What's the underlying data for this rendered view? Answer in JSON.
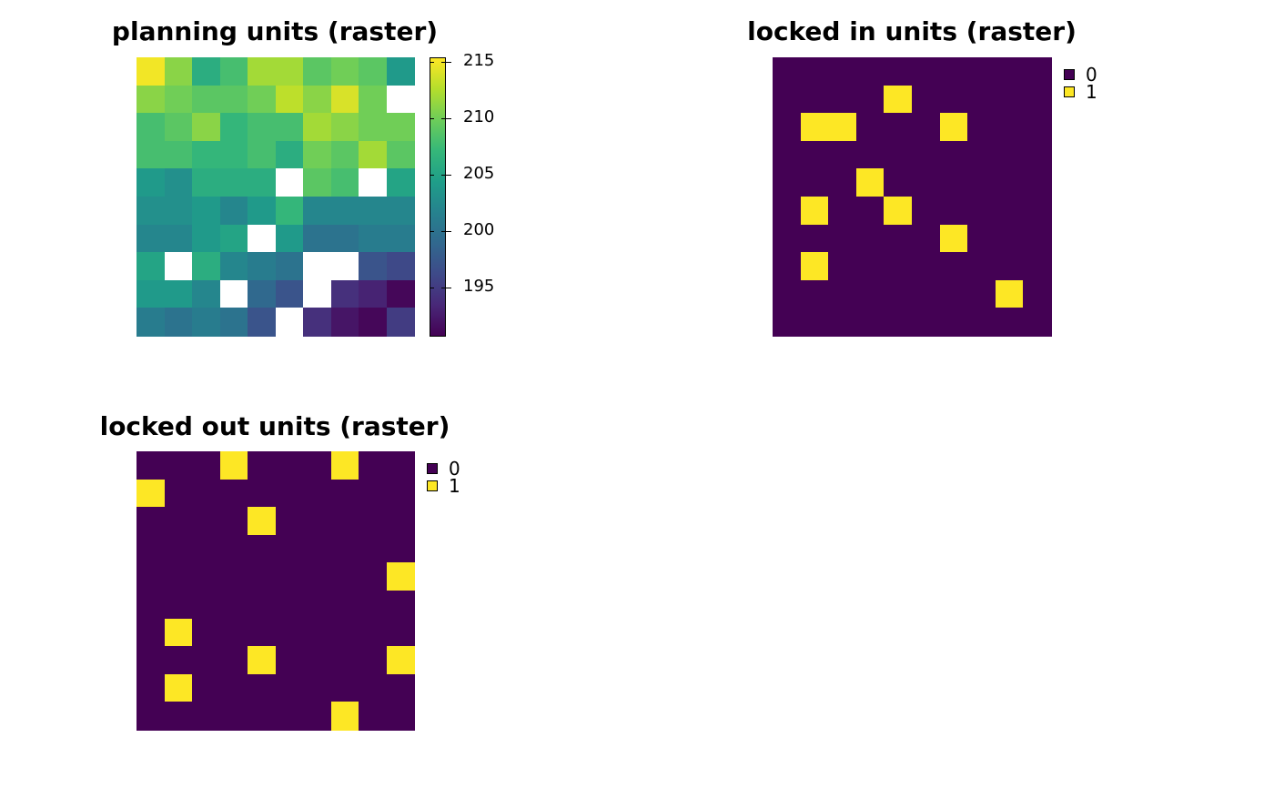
{
  "colors": {
    "viridis": [
      "#440154",
      "#482878",
      "#3E4A89",
      "#31688E",
      "#26828E",
      "#1F9E89",
      "#35B779",
      "#6DCD59",
      "#B4DE2C",
      "#FDE725"
    ],
    "na": "#ffffff",
    "locked_0": "#440154",
    "locked_1": "#FDE725"
  },
  "chart_data": [
    {
      "type": "heatmap",
      "title": "planning units (raster)",
      "rows": 10,
      "cols": 10,
      "value_range": [
        190.6,
        215.4
      ],
      "colorbar_ticks": [
        195,
        200,
        205,
        210,
        215
      ],
      "values": [
        [
          215,
          211,
          206,
          208,
          212,
          212,
          209,
          210,
          209,
          204
        ],
        [
          211,
          210,
          209,
          209,
          210,
          213,
          211,
          214,
          210,
          null
        ],
        [
          208,
          209,
          211,
          207,
          208,
          208,
          212,
          211,
          210,
          210
        ],
        [
          208,
          208,
          207,
          207,
          208,
          206,
          210,
          209,
          212,
          209
        ],
        [
          204,
          203,
          206,
          206,
          206,
          null,
          209,
          208,
          null,
          205
        ],
        [
          203,
          203,
          204,
          202,
          204,
          207,
          202,
          202,
          202,
          202
        ],
        [
          202,
          202,
          204,
          205,
          null,
          204,
          200,
          200,
          201,
          201
        ],
        [
          205,
          null,
          206,
          202,
          201,
          200,
          null,
          null,
          197,
          196
        ],
        [
          204,
          204,
          202,
          null,
          199,
          197,
          null,
          194,
          193,
          191
        ],
        [
          201,
          200,
          201,
          200,
          197,
          null,
          194,
          192,
          191,
          195
        ]
      ]
    },
    {
      "type": "heatmap",
      "title": "locked in units (raster)",
      "rows": 10,
      "cols": 10,
      "legend": [
        "0",
        "1"
      ],
      "values": [
        [
          0,
          0,
          0,
          0,
          0,
          0,
          0,
          0,
          0,
          0
        ],
        [
          0,
          0,
          0,
          0,
          1,
          0,
          0,
          0,
          0,
          0
        ],
        [
          0,
          1,
          1,
          0,
          0,
          0,
          1,
          0,
          0,
          0
        ],
        [
          0,
          0,
          0,
          0,
          0,
          0,
          0,
          0,
          0,
          0
        ],
        [
          0,
          0,
          0,
          1,
          0,
          0,
          0,
          0,
          0,
          0
        ],
        [
          0,
          1,
          0,
          0,
          1,
          0,
          0,
          0,
          0,
          0
        ],
        [
          0,
          0,
          0,
          0,
          0,
          0,
          1,
          0,
          0,
          0
        ],
        [
          0,
          1,
          0,
          0,
          0,
          0,
          0,
          0,
          0,
          0
        ],
        [
          0,
          0,
          0,
          0,
          0,
          0,
          0,
          0,
          1,
          0
        ],
        [
          0,
          0,
          0,
          0,
          0,
          0,
          0,
          0,
          0,
          0
        ]
      ]
    },
    {
      "type": "heatmap",
      "title": "locked out units (raster)",
      "rows": 10,
      "cols": 10,
      "legend": [
        "0",
        "1"
      ],
      "values": [
        [
          0,
          0,
          0,
          1,
          0,
          0,
          0,
          1,
          0,
          0
        ],
        [
          1,
          0,
          0,
          0,
          0,
          0,
          0,
          0,
          0,
          0
        ],
        [
          0,
          0,
          0,
          0,
          1,
          0,
          0,
          0,
          0,
          0
        ],
        [
          0,
          0,
          0,
          0,
          0,
          0,
          0,
          0,
          0,
          0
        ],
        [
          0,
          0,
          0,
          0,
          0,
          0,
          0,
          0,
          0,
          1
        ],
        [
          0,
          0,
          0,
          0,
          0,
          0,
          0,
          0,
          0,
          0
        ],
        [
          0,
          1,
          0,
          0,
          0,
          0,
          0,
          0,
          0,
          0
        ],
        [
          0,
          0,
          0,
          0,
          1,
          0,
          0,
          0,
          0,
          1
        ],
        [
          0,
          1,
          0,
          0,
          0,
          0,
          0,
          0,
          0,
          0
        ],
        [
          0,
          0,
          0,
          0,
          0,
          0,
          0,
          1,
          0,
          0
        ]
      ]
    }
  ]
}
